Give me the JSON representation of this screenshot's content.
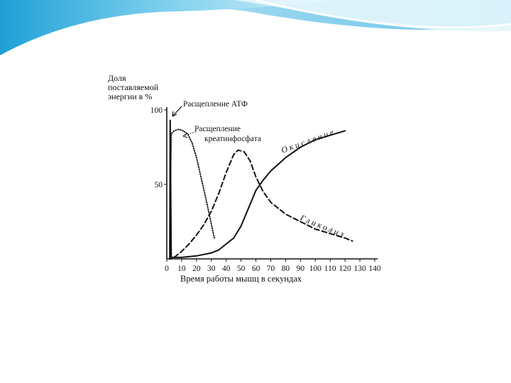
{
  "colors": {
    "banner_light": "#d9f1fb",
    "banner_mid": "#7fd0ee",
    "banner_dark": "#1ea0d6",
    "ink": "#111111"
  },
  "chart_data": {
    "type": "line",
    "ylabel_lines": [
      "Доля",
      "поставляемой",
      "энергии в %"
    ],
    "xlabel": "Время работы мышц в секундах",
    "xlim": [
      0,
      140
    ],
    "ylim": [
      0,
      100
    ],
    "x_ticks": [
      0,
      10,
      20,
      30,
      40,
      50,
      60,
      70,
      80,
      90,
      100,
      110,
      120,
      130,
      140
    ],
    "y_ticks": [
      100,
      50
    ],
    "grid": false,
    "legend": "none",
    "annotations": [
      "Расщепление АТФ",
      "Расщепление",
      "креатинфосфата"
    ],
    "series": [
      {
        "name": "Расщепление АТФ",
        "style": "solid",
        "x": [
          2,
          2.3,
          3
        ],
        "y": [
          0,
          93,
          0
        ]
      },
      {
        "name": "Расщепление креатинфосфата",
        "style": "dotted",
        "x": [
          2,
          3,
          5,
          8,
          11,
          14,
          17,
          20,
          23,
          26,
          29,
          32
        ],
        "y": [
          10,
          84,
          86,
          87,
          86,
          84,
          78,
          68,
          55,
          42,
          28,
          14
        ]
      },
      {
        "name": "Гликолиз",
        "style": "dashed",
        "x": [
          5,
          10,
          15,
          20,
          25,
          30,
          35,
          40,
          45,
          48,
          52,
          56,
          60,
          65,
          70,
          80,
          90,
          100,
          110,
          120,
          125
        ],
        "y": [
          1,
          5,
          10,
          16,
          23,
          32,
          44,
          58,
          70,
          73,
          72,
          66,
          55,
          45,
          38,
          30,
          25,
          20,
          17,
          14,
          12
        ]
      },
      {
        "name": "Окисление",
        "style": "solid",
        "x": [
          3,
          10,
          20,
          30,
          35,
          40,
          45,
          50,
          55,
          60,
          65,
          70,
          80,
          90,
          100,
          110,
          120
        ],
        "y": [
          1,
          1,
          2,
          4,
          6,
          10,
          14,
          22,
          34,
          46,
          53,
          59,
          68,
          75,
          80,
          83,
          86
        ]
      }
    ],
    "curve_labels": [
      "Окисление",
      "Гликолиз"
    ]
  }
}
